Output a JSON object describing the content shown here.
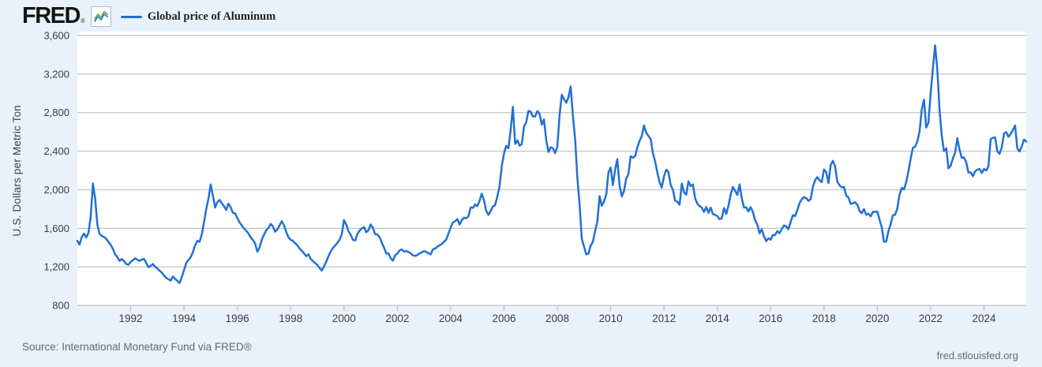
{
  "header": {
    "logo": "FRED",
    "registered_mark": "®",
    "legend": {
      "label": "Global price of Aluminum",
      "line_color": "#2170d6"
    }
  },
  "y_axis": {
    "title": "U.S. Dollars per Metric Ton",
    "tick_labels": [
      "800",
      "1,200",
      "1,600",
      "2,000",
      "2,400",
      "2,800",
      "3,200",
      "3,600"
    ]
  },
  "x_axis": {
    "tick_labels": [
      "1992",
      "1994",
      "1996",
      "1998",
      "2000",
      "2002",
      "2004",
      "2006",
      "2008",
      "2010",
      "2012",
      "2014",
      "2016",
      "2018",
      "2020",
      "2022",
      "2024"
    ]
  },
  "footer": {
    "source": "Source: International Monetary Fund via FRED®",
    "site_link": "fred.stlouisfed.org"
  },
  "colors": {
    "background": "#e9f2fb",
    "plot_background": "#ffffff",
    "gridline": "#c8c8c8",
    "tick_mark": "#b9c5d1",
    "tick_text": "#3b3b3b",
    "series_line": "#2170d6"
  },
  "chart_data": {
    "type": "line",
    "title": "Global price of Aluminum",
    "ylabel": "U.S. Dollars per Metric Ton",
    "frequency": "monthly",
    "start": "1990-01",
    "end": "2025-08",
    "ylim": [
      800,
      3600
    ],
    "y_ticks": [
      800,
      1200,
      1600,
      2000,
      2400,
      2800,
      3200,
      3600
    ],
    "x_ticks": [
      1992,
      1994,
      1996,
      1998,
      2000,
      2002,
      2004,
      2006,
      2008,
      2010,
      2012,
      2014,
      2016,
      2018,
      2020,
      2022,
      2024
    ],
    "grid": "horizontal",
    "legend_position": "top-left",
    "series": [
      {
        "name": "Global price of Aluminum",
        "color": "#2170d6",
        "start_year": 1990,
        "values": [
          1470,
          1432,
          1510,
          1545,
          1505,
          1555,
          1720,
          2065,
          1910,
          1640,
          1545,
          1520,
          1510,
          1490,
          1460,
          1430,
          1388,
          1330,
          1300,
          1262,
          1282,
          1260,
          1230,
          1222,
          1252,
          1270,
          1288,
          1275,
          1262,
          1276,
          1282,
          1240,
          1196,
          1210,
          1230,
          1202,
          1183,
          1160,
          1141,
          1110,
          1086,
          1072,
          1058,
          1100,
          1075,
          1055,
          1032,
          1095,
          1165,
          1240,
          1270,
          1300,
          1355,
          1425,
          1470,
          1460,
          1535,
          1665,
          1800,
          1910,
          2055,
          1940,
          1815,
          1870,
          1895,
          1860,
          1830,
          1790,
          1855,
          1820,
          1760,
          1755,
          1705,
          1662,
          1630,
          1598,
          1575,
          1545,
          1506,
          1478,
          1442,
          1358,
          1402,
          1480,
          1535,
          1580,
          1604,
          1646,
          1620,
          1565,
          1588,
          1632,
          1674,
          1630,
          1562,
          1507,
          1480,
          1470,
          1445,
          1423,
          1390,
          1367,
          1340,
          1311,
          1330,
          1283,
          1260,
          1240,
          1220,
          1190,
          1162,
          1205,
          1255,
          1311,
          1360,
          1394,
          1420,
          1450,
          1480,
          1540,
          1686,
          1640,
          1570,
          1535,
          1480,
          1474,
          1540,
          1576,
          1600,
          1612,
          1560,
          1580,
          1640,
          1605,
          1540,
          1535,
          1510,
          1450,
          1400,
          1339,
          1340,
          1290,
          1264,
          1320,
          1339,
          1370,
          1381,
          1360,
          1364,
          1355,
          1341,
          1320,
          1314,
          1322,
          1341,
          1350,
          1364,
          1355,
          1341,
          1330,
          1381,
          1390,
          1409,
          1425,
          1436,
          1460,
          1484,
          1545,
          1608,
          1662,
          1673,
          1696,
          1639,
          1686,
          1710,
          1705,
          1725,
          1818,
          1812,
          1848,
          1830,
          1885,
          1960,
          1890,
          1780,
          1740,
          1780,
          1826,
          1840,
          1929,
          2034,
          2250,
          2378,
          2455,
          2430,
          2620,
          2861,
          2476,
          2512,
          2458,
          2472,
          2658,
          2698,
          2818,
          2808,
          2760,
          2762,
          2815,
          2790,
          2675,
          2730,
          2512,
          2392,
          2440,
          2430,
          2380,
          2445,
          2777,
          2985,
          2940,
          2903,
          2957,
          3071,
          2773,
          2525,
          2121,
          1852,
          1490,
          1413,
          1330,
          1336,
          1421,
          1460,
          1574,
          1668,
          1933,
          1833,
          1879,
          1950,
          2180,
          2230,
          2048,
          2206,
          2317,
          2041,
          1931,
          1988,
          2118,
          2162,
          2347,
          2332,
          2350,
          2440,
          2508,
          2555,
          2667,
          2592,
          2559,
          2525,
          2379,
          2293,
          2180,
          2080,
          2022,
          2142,
          2208,
          2184,
          2049,
          2002,
          1889,
          1876,
          1845,
          2064,
          1974,
          1949,
          2087,
          2037,
          2054,
          1910,
          1856,
          1831,
          1815,
          1770,
          1820,
          1761,
          1815,
          1748,
          1739,
          1727,
          1695,
          1703,
          1810,
          1750,
          1834,
          1948,
          2030,
          1990,
          1946,
          2056,
          1909,
          1816,
          1818,
          1774,
          1819,
          1769,
          1681,
          1639,
          1548,
          1590,
          1517,
          1467,
          1497,
          1481,
          1531,
          1531,
          1571,
          1548,
          1593,
          1629,
          1620,
          1592,
          1666,
          1736,
          1727,
          1791,
          1861,
          1901,
          1924,
          1913,
          1885,
          1903,
          2030,
          2100,
          2131,
          2097,
          2080,
          2210,
          2181,
          2070,
          2256,
          2300,
          2243,
          2082,
          2046,
          2026,
          2029,
          1939,
          1920,
          1853,
          1860,
          1871,
          1845,
          1780,
          1756,
          1800,
          1741,
          1751,
          1724,
          1771,
          1771,
          1773,
          1688,
          1611,
          1460,
          1463,
          1571,
          1644,
          1737,
          1741,
          1806,
          1949,
          2019,
          2004,
          2080,
          2191,
          2320,
          2433,
          2447,
          2501,
          2605,
          2835,
          2934,
          2645,
          2696,
          3005,
          3261,
          3498,
          3246,
          2830,
          2562,
          2401,
          2430,
          2222,
          2250,
          2326,
          2384,
          2535,
          2413,
          2331,
          2335,
          2284,
          2179,
          2180,
          2140,
          2193,
          2208,
          2216,
          2175,
          2216,
          2199,
          2240,
          2525,
          2540,
          2542,
          2399,
          2373,
          2437,
          2583,
          2597,
          2550,
          2580,
          2620,
          2666,
          2430,
          2397,
          2450,
          2522,
          2500
        ]
      }
    ]
  }
}
